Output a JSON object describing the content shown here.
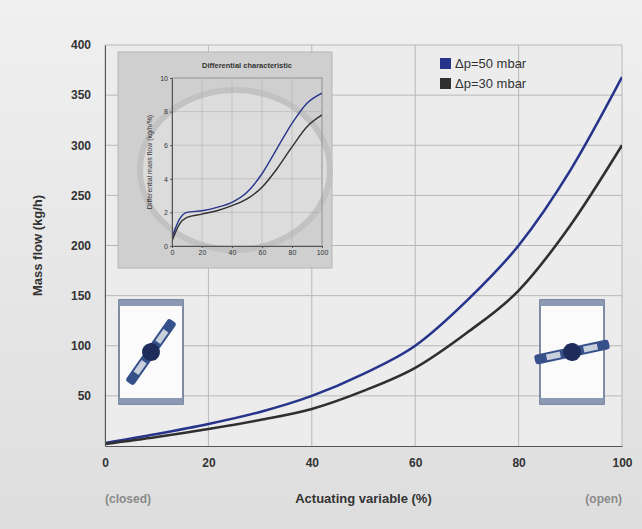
{
  "chart_data": [
    {
      "type": "line",
      "x_label": "Actuating variable (%)",
      "y_label": "Mass flow (kg/h)",
      "x": [
        0,
        10,
        20,
        30,
        40,
        50,
        60,
        70,
        80,
        90,
        100
      ],
      "series": [
        {
          "name": "Δp=50 mbar",
          "color": "#27348b",
          "values": [
            3,
            12,
            22,
            34,
            50,
            72,
            100,
            145,
            200,
            275,
            368
          ]
        },
        {
          "name": "Δp=30 mbar",
          "color": "#2f2f2f",
          "values": [
            2,
            9,
            17,
            26,
            37,
            55,
            78,
            113,
            155,
            220,
            300
          ]
        }
      ],
      "xlim": [
        0,
        100
      ],
      "ylim": [
        0,
        400
      ],
      "xticks": [
        0,
        20,
        40,
        60,
        80,
        100
      ],
      "yticks": [
        50,
        100,
        150,
        200,
        250,
        300,
        350,
        400
      ],
      "grid": true,
      "legend": "top-right",
      "annotations": [
        {
          "text": "(closed)",
          "x": 0
        },
        {
          "text": "(open)",
          "x": 100
        }
      ]
    },
    {
      "type": "line",
      "title": "Differential characteristic",
      "y_label": "Differential mass flow (kg/h/%)",
      "x": [
        0,
        5,
        10,
        20,
        30,
        40,
        50,
        60,
        70,
        80,
        90,
        100
      ],
      "series": [
        {
          "color": "#27348b",
          "values": [
            0.5,
            1.6,
            2.0,
            2.1,
            2.3,
            2.6,
            3.2,
            4.3,
            5.8,
            7.3,
            8.5,
            9.1
          ]
        },
        {
          "color": "#2f2f2f",
          "values": [
            0.3,
            1.3,
            1.7,
            1.9,
            2.1,
            2.4,
            2.8,
            3.5,
            4.6,
            5.9,
            7.1,
            7.8
          ]
        }
      ],
      "xlim": [
        0,
        100
      ],
      "ylim": [
        0,
        10
      ],
      "xticks": [
        0,
        20,
        40,
        60,
        80,
        100
      ],
      "yticks": [
        0,
        2,
        4,
        6,
        8,
        10
      ],
      "grid": true
    }
  ]
}
